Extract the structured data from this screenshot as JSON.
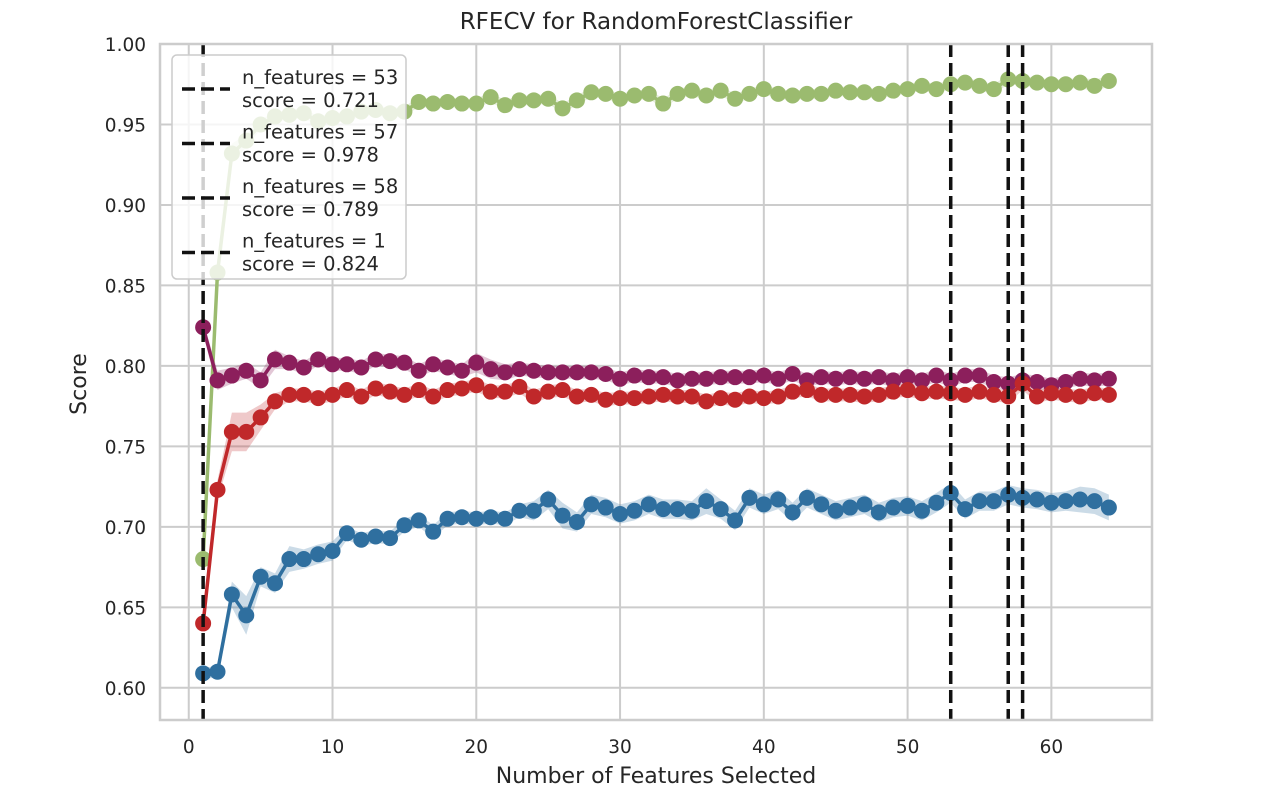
{
  "chart_data": {
    "type": "line",
    "title": "RFECV for RandomForestClassifier",
    "xlabel": "Number of Features Selected",
    "ylabel": "Score",
    "xlim": [
      -2,
      67
    ],
    "ylim": [
      0.58,
      1.0
    ],
    "xticks": [
      "0",
      "10",
      "20",
      "30",
      "40",
      "50",
      "60"
    ],
    "xtick_values": [
      0,
      10,
      20,
      30,
      40,
      50,
      60
    ],
    "yticks": [
      "0.60",
      "0.65",
      "0.70",
      "0.75",
      "0.80",
      "0.85",
      "0.90",
      "0.95",
      "1.00"
    ],
    "ytick_values": [
      0.6,
      0.65,
      0.7,
      0.75,
      0.8,
      0.85,
      0.9,
      0.95,
      1.0
    ],
    "grid": true,
    "legend_position": "top-left",
    "colors": {
      "green": "#9bbb6f",
      "purple": "#8c1f5c",
      "red": "#c0282a",
      "blue": "#2f6f9f",
      "vline": "#111111",
      "grid": "#cccccc",
      "frame": "#cccccc"
    },
    "series": [
      {
        "color_key": "green",
        "values": [
          0.68,
          0.858,
          0.932,
          0.94,
          0.95,
          0.955,
          0.956,
          0.957,
          0.952,
          0.954,
          0.955,
          0.958,
          0.959,
          0.957,
          0.958,
          0.964,
          0.963,
          0.964,
          0.963,
          0.963,
          0.967,
          0.962,
          0.965,
          0.965,
          0.966,
          0.96,
          0.965,
          0.97,
          0.969,
          0.966,
          0.968,
          0.969,
          0.963,
          0.969,
          0.971,
          0.968,
          0.971,
          0.966,
          0.969,
          0.972,
          0.969,
          0.968,
          0.969,
          0.969,
          0.971,
          0.97,
          0.97,
          0.969,
          0.971,
          0.972,
          0.974,
          0.972,
          0.975,
          0.976,
          0.974,
          0.972,
          0.978,
          0.977,
          0.976,
          0.975,
          0.975,
          0.976,
          0.974,
          0.977
        ],
        "band": [
          0.005,
          0.01,
          0.006,
          0.004,
          0.003,
          0.003,
          0.003,
          0.003,
          0.003,
          0.003,
          0.003,
          0.003,
          0.003,
          0.003,
          0.003,
          0.003,
          0.003,
          0.003,
          0.003,
          0.003,
          0.003,
          0.003,
          0.003,
          0.003,
          0.003,
          0.003,
          0.003,
          0.003,
          0.003,
          0.003,
          0.003,
          0.003,
          0.003,
          0.003,
          0.003,
          0.003,
          0.003,
          0.003,
          0.003,
          0.003,
          0.003,
          0.003,
          0.003,
          0.003,
          0.003,
          0.003,
          0.003,
          0.003,
          0.003,
          0.003,
          0.003,
          0.003,
          0.003,
          0.003,
          0.003,
          0.003,
          0.003,
          0.003,
          0.003,
          0.003,
          0.003,
          0.003,
          0.004,
          0.003
        ]
      },
      {
        "color_key": "purple",
        "values": [
          0.824,
          0.791,
          0.794,
          0.797,
          0.791,
          0.804,
          0.802,
          0.799,
          0.804,
          0.801,
          0.801,
          0.799,
          0.804,
          0.803,
          0.802,
          0.797,
          0.801,
          0.799,
          0.797,
          0.802,
          0.798,
          0.796,
          0.798,
          0.797,
          0.796,
          0.796,
          0.796,
          0.796,
          0.795,
          0.792,
          0.794,
          0.793,
          0.793,
          0.791,
          0.792,
          0.792,
          0.793,
          0.793,
          0.793,
          0.794,
          0.792,
          0.795,
          0.791,
          0.793,
          0.792,
          0.793,
          0.792,
          0.793,
          0.791,
          0.793,
          0.791,
          0.794,
          0.791,
          0.794,
          0.794,
          0.79,
          0.789,
          0.791,
          0.79,
          0.788,
          0.79,
          0.792,
          0.791,
          0.792
        ],
        "band": [
          0.004,
          0.006,
          0.005,
          0.005,
          0.005,
          0.006,
          0.004,
          0.004,
          0.004,
          0.004,
          0.004,
          0.004,
          0.004,
          0.004,
          0.004,
          0.004,
          0.004,
          0.004,
          0.004,
          0.006,
          0.006,
          0.005,
          0.004,
          0.004,
          0.004,
          0.004,
          0.004,
          0.004,
          0.004,
          0.004,
          0.004,
          0.004,
          0.004,
          0.004,
          0.004,
          0.004,
          0.004,
          0.004,
          0.004,
          0.004,
          0.004,
          0.004,
          0.004,
          0.004,
          0.004,
          0.004,
          0.004,
          0.004,
          0.004,
          0.004,
          0.004,
          0.004,
          0.004,
          0.004,
          0.004,
          0.004,
          0.004,
          0.004,
          0.004,
          0.004,
          0.004,
          0.004,
          0.004,
          0.004
        ]
      },
      {
        "color_key": "red",
        "values": [
          0.64,
          0.723,
          0.759,
          0.759,
          0.768,
          0.778,
          0.782,
          0.782,
          0.78,
          0.782,
          0.785,
          0.781,
          0.786,
          0.784,
          0.782,
          0.785,
          0.781,
          0.785,
          0.786,
          0.788,
          0.784,
          0.784,
          0.787,
          0.781,
          0.784,
          0.785,
          0.781,
          0.782,
          0.779,
          0.78,
          0.78,
          0.781,
          0.782,
          0.781,
          0.781,
          0.778,
          0.78,
          0.779,
          0.781,
          0.78,
          0.781,
          0.784,
          0.785,
          0.782,
          0.782,
          0.782,
          0.781,
          0.782,
          0.784,
          0.785,
          0.783,
          0.784,
          0.783,
          0.782,
          0.784,
          0.782,
          0.781,
          0.789,
          0.781,
          0.783,
          0.782,
          0.781,
          0.783,
          0.782
        ],
        "band": [
          0.005,
          0.006,
          0.012,
          0.012,
          0.008,
          0.005,
          0.004,
          0.004,
          0.004,
          0.004,
          0.004,
          0.004,
          0.004,
          0.004,
          0.004,
          0.004,
          0.004,
          0.004,
          0.004,
          0.004,
          0.004,
          0.004,
          0.004,
          0.004,
          0.004,
          0.004,
          0.004,
          0.004,
          0.004,
          0.004,
          0.004,
          0.004,
          0.004,
          0.004,
          0.004,
          0.004,
          0.004,
          0.004,
          0.004,
          0.004,
          0.004,
          0.004,
          0.004,
          0.004,
          0.004,
          0.004,
          0.004,
          0.004,
          0.004,
          0.004,
          0.004,
          0.004,
          0.004,
          0.004,
          0.004,
          0.004,
          0.004,
          0.004,
          0.004,
          0.004,
          0.004,
          0.004,
          0.004,
          0.004
        ]
      },
      {
        "color_key": "blue",
        "values": [
          0.609,
          0.61,
          0.658,
          0.645,
          0.669,
          0.665,
          0.68,
          0.68,
          0.683,
          0.685,
          0.696,
          0.692,
          0.694,
          0.693,
          0.701,
          0.704,
          0.697,
          0.705,
          0.706,
          0.705,
          0.706,
          0.705,
          0.71,
          0.71,
          0.717,
          0.707,
          0.703,
          0.714,
          0.712,
          0.708,
          0.71,
          0.714,
          0.711,
          0.711,
          0.71,
          0.716,
          0.711,
          0.704,
          0.718,
          0.714,
          0.717,
          0.709,
          0.718,
          0.714,
          0.71,
          0.712,
          0.714,
          0.709,
          0.712,
          0.713,
          0.71,
          0.715,
          0.721,
          0.711,
          0.716,
          0.716,
          0.72,
          0.718,
          0.717,
          0.715,
          0.716,
          0.717,
          0.716,
          0.712
        ],
        "band": [
          0.003,
          0.004,
          0.008,
          0.012,
          0.006,
          0.006,
          0.008,
          0.006,
          0.006,
          0.006,
          0.004,
          0.004,
          0.004,
          0.004,
          0.004,
          0.004,
          0.004,
          0.004,
          0.004,
          0.004,
          0.004,
          0.004,
          0.004,
          0.006,
          0.006,
          0.008,
          0.006,
          0.006,
          0.006,
          0.006,
          0.006,
          0.006,
          0.006,
          0.006,
          0.006,
          0.008,
          0.006,
          0.006,
          0.006,
          0.006,
          0.006,
          0.006,
          0.006,
          0.006,
          0.006,
          0.006,
          0.006,
          0.006,
          0.006,
          0.006,
          0.006,
          0.006,
          0.006,
          0.006,
          0.006,
          0.006,
          0.006,
          0.006,
          0.006,
          0.006,
          0.006,
          0.008,
          0.008,
          0.008
        ]
      }
    ],
    "vlines": [
      53,
      57,
      58,
      1
    ],
    "legend": [
      {
        "line1": "n_features = 53",
        "line2": "score = 0.721"
      },
      {
        "line1": "n_features = 57",
        "line2": "score = 0.978"
      },
      {
        "line1": "n_features = 58",
        "line2": "score = 0.789"
      },
      {
        "line1": "n_features = 1",
        "line2": "score = 0.824"
      }
    ]
  }
}
